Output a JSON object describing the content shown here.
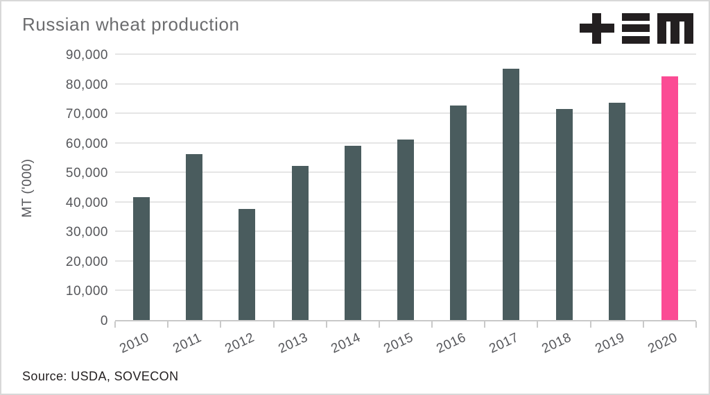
{
  "header": {
    "title": "Russian wheat production"
  },
  "logo": {
    "name": "tem-logo",
    "glyphs": [
      "plus",
      "triple-bar",
      "m"
    ],
    "color": "#231f20"
  },
  "footer": {
    "source": "Source: USDA, SOVECON"
  },
  "colors": {
    "bar_default": "#4a5c5e",
    "bar_highlight": "#fb4b94",
    "grid": "#e5e5e5",
    "axis": "#c9c9c9",
    "title_text": "#6b6c6e",
    "tick_text": "#55565a",
    "source_text": "#231f20",
    "frame_border": "#d8d8d8"
  },
  "chart_data": {
    "type": "bar",
    "title": "Russian wheat production",
    "categories": [
      "2010",
      "2011",
      "2012",
      "2013",
      "2014",
      "2015",
      "2016",
      "2017",
      "2018",
      "2019",
      "2020"
    ],
    "values": [
      41500,
      56200,
      37700,
      52100,
      59000,
      61000,
      72500,
      85000,
      71500,
      73500,
      82500
    ],
    "highlight_category": "2020",
    "xlabel": "",
    "ylabel": "MT ('000)",
    "ylim": [
      0,
      90000
    ],
    "ytick_step": 10000,
    "ytick_labels": [
      "0",
      "10,000",
      "20,000",
      "30,000",
      "40,000",
      "50,000",
      "60,000",
      "70,000",
      "80,000",
      "90,000"
    ],
    "grid": true,
    "legend": false
  }
}
